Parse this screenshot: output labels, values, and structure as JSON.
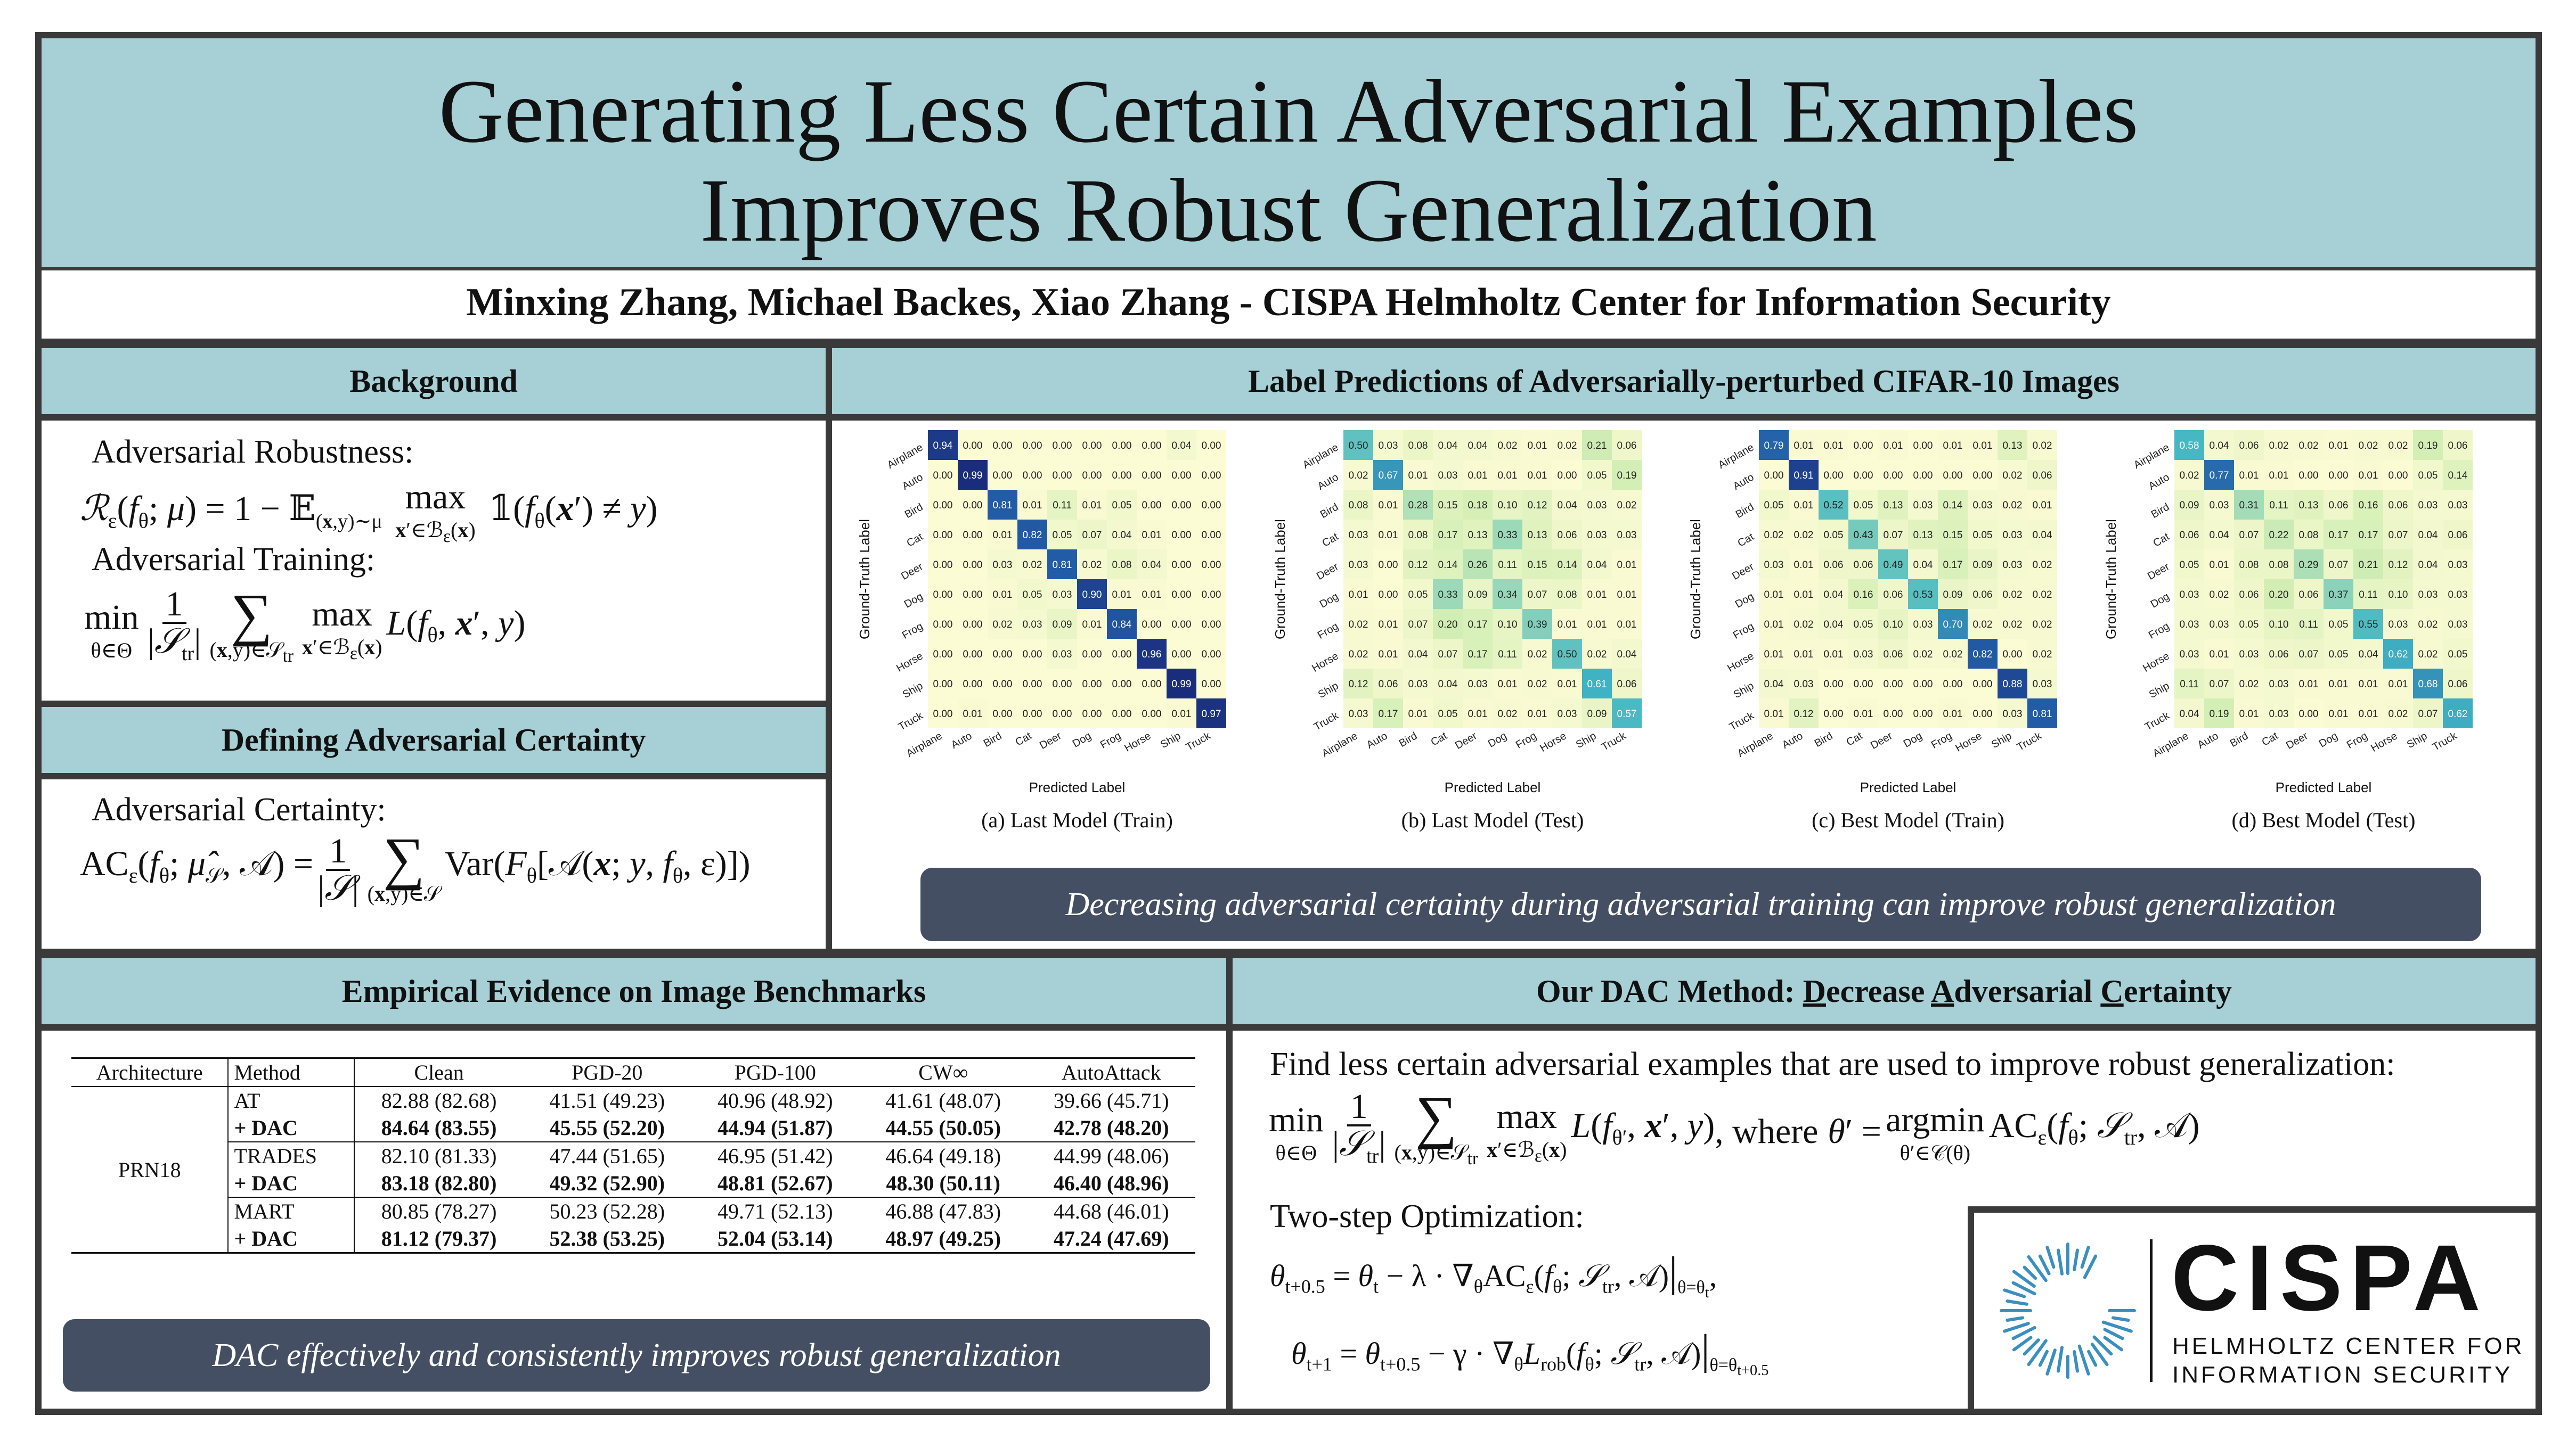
{
  "title": {
    "line1": "Generating Less Certain Adversarial Examples",
    "line2": "Improves Robust Generalization"
  },
  "authors": "Minxing Zhang, Michael Backes, Xiao Zhang -  CISPA Helmholtz Center for Information Security",
  "background": {
    "header": "Background",
    "robustness_label": "Adversarial Robustness:",
    "training_label": "Adversarial Training:"
  },
  "certainty": {
    "header": "Defining Adversarial Certainty",
    "label": "Adversarial Certainty:"
  },
  "label_pred": {
    "header": "Label Predictions of Adversarially-perturbed CIFAR-10 Images",
    "classes": [
      "Airplane",
      "Auto",
      "Bird",
      "Cat",
      "Deer",
      "Dog",
      "Frog",
      "Horse",
      "Ship",
      "Truck"
    ],
    "ylabel": "Ground-Truth Label",
    "xlabel": "Predicted Label",
    "panels": [
      {
        "caption": "(a)  Last Model (Train)",
        "matrix": [
          [
            0.94,
            0.0,
            0.0,
            0.0,
            0.0,
            0.0,
            0.0,
            0.0,
            0.04,
            0.0
          ],
          [
            0.0,
            0.99,
            0.0,
            0.0,
            0.0,
            0.0,
            0.0,
            0.0,
            0.0,
            0.0
          ],
          [
            0.0,
            0.0,
            0.81,
            0.01,
            0.11,
            0.01,
            0.05,
            0.0,
            0.0,
            0.0
          ],
          [
            0.0,
            0.0,
            0.01,
            0.82,
            0.05,
            0.07,
            0.04,
            0.01,
            0.0,
            0.0
          ],
          [
            0.0,
            0.0,
            0.03,
            0.02,
            0.81,
            0.02,
            0.08,
            0.04,
            0.0,
            0.0
          ],
          [
            0.0,
            0.0,
            0.01,
            0.05,
            0.03,
            0.9,
            0.01,
            0.01,
            0.0,
            0.0
          ],
          [
            0.0,
            0.0,
            0.02,
            0.03,
            0.09,
            0.01,
            0.84,
            0.0,
            0.0,
            0.0
          ],
          [
            0.0,
            0.0,
            0.0,
            0.0,
            0.03,
            0.0,
            0.0,
            0.96,
            0.0,
            0.0
          ],
          [
            0.0,
            0.0,
            0.0,
            0.0,
            0.0,
            0.0,
            0.0,
            0.0,
            0.99,
            0.0
          ],
          [
            0.0,
            0.01,
            0.0,
            0.0,
            0.0,
            0.0,
            0.0,
            0.0,
            0.01,
            0.97
          ]
        ]
      },
      {
        "caption": "(b)  Last Model (Test)",
        "matrix": [
          [
            0.5,
            0.03,
            0.08,
            0.04,
            0.04,
            0.02,
            0.01,
            0.02,
            0.21,
            0.06
          ],
          [
            0.02,
            0.67,
            0.01,
            0.03,
            0.01,
            0.01,
            0.01,
            0.0,
            0.05,
            0.19
          ],
          [
            0.08,
            0.01,
            0.28,
            0.15,
            0.18,
            0.1,
            0.12,
            0.04,
            0.03,
            0.02
          ],
          [
            0.03,
            0.01,
            0.08,
            0.17,
            0.13,
            0.33,
            0.13,
            0.06,
            0.03,
            0.03
          ],
          [
            0.03,
            0.0,
            0.12,
            0.14,
            0.26,
            0.11,
            0.15,
            0.14,
            0.04,
            0.01
          ],
          [
            0.01,
            0.0,
            0.05,
            0.33,
            0.09,
            0.34,
            0.07,
            0.08,
            0.01,
            0.01
          ],
          [
            0.02,
            0.01,
            0.07,
            0.2,
            0.17,
            0.1,
            0.39,
            0.01,
            0.01,
            0.01
          ],
          [
            0.02,
            0.01,
            0.04,
            0.07,
            0.17,
            0.11,
            0.02,
            0.5,
            0.02,
            0.04
          ],
          [
            0.12,
            0.06,
            0.03,
            0.04,
            0.03,
            0.01,
            0.02,
            0.01,
            0.61,
            0.06
          ],
          [
            0.03,
            0.17,
            0.01,
            0.05,
            0.01,
            0.02,
            0.01,
            0.03,
            0.09,
            0.57
          ]
        ]
      },
      {
        "caption": "(c)  Best Model (Train)",
        "matrix": [
          [
            0.79,
            0.01,
            0.01,
            0.0,
            0.01,
            0.0,
            0.01,
            0.01,
            0.13,
            0.02
          ],
          [
            0.0,
            0.91,
            0.0,
            0.0,
            0.0,
            0.0,
            0.0,
            0.0,
            0.02,
            0.06
          ],
          [
            0.05,
            0.01,
            0.52,
            0.05,
            0.13,
            0.03,
            0.14,
            0.03,
            0.02,
            0.01
          ],
          [
            0.02,
            0.02,
            0.05,
            0.43,
            0.07,
            0.13,
            0.15,
            0.05,
            0.03,
            0.04
          ],
          [
            0.03,
            0.01,
            0.06,
            0.06,
            0.49,
            0.04,
            0.17,
            0.09,
            0.03,
            0.02
          ],
          [
            0.01,
            0.01,
            0.04,
            0.16,
            0.06,
            0.53,
            0.09,
            0.06,
            0.02,
            0.02
          ],
          [
            0.01,
            0.02,
            0.04,
            0.05,
            0.1,
            0.03,
            0.7,
            0.02,
            0.02,
            0.02
          ],
          [
            0.01,
            0.01,
            0.01,
            0.03,
            0.06,
            0.02,
            0.02,
            0.82,
            0.0,
            0.02
          ],
          [
            0.04,
            0.03,
            0.0,
            0.0,
            0.0,
            0.0,
            0.0,
            0.0,
            0.88,
            0.03
          ],
          [
            0.01,
            0.12,
            0.0,
            0.01,
            0.0,
            0.0,
            0.01,
            0.0,
            0.03,
            0.81
          ]
        ]
      },
      {
        "caption": "(d)  Best Model (Test)",
        "matrix": [
          [
            0.58,
            0.04,
            0.06,
            0.02,
            0.02,
            0.01,
            0.02,
            0.02,
            0.19,
            0.06
          ],
          [
            0.02,
            0.77,
            0.01,
            0.01,
            0.0,
            0.0,
            0.01,
            0.0,
            0.05,
            0.14
          ],
          [
            0.09,
            0.03,
            0.31,
            0.11,
            0.13,
            0.06,
            0.16,
            0.06,
            0.03,
            0.03
          ],
          [
            0.06,
            0.04,
            0.07,
            0.22,
            0.08,
            0.17,
            0.17,
            0.07,
            0.04,
            0.06
          ],
          [
            0.05,
            0.01,
            0.08,
            0.08,
            0.29,
            0.07,
            0.21,
            0.12,
            0.04,
            0.03
          ],
          [
            0.03,
            0.02,
            0.06,
            0.2,
            0.06,
            0.37,
            0.11,
            0.1,
            0.03,
            0.03
          ],
          [
            0.03,
            0.03,
            0.05,
            0.1,
            0.11,
            0.05,
            0.55,
            0.03,
            0.02,
            0.03
          ],
          [
            0.03,
            0.01,
            0.03,
            0.06,
            0.07,
            0.05,
            0.04,
            0.62,
            0.02,
            0.05
          ],
          [
            0.11,
            0.07,
            0.02,
            0.03,
            0.01,
            0.01,
            0.01,
            0.01,
            0.68,
            0.06
          ],
          [
            0.04,
            0.19,
            0.01,
            0.03,
            0.0,
            0.01,
            0.01,
            0.02,
            0.07,
            0.62
          ]
        ]
      }
    ],
    "banner": "Decreasing adversarial certainty during adversarial training can improve robust generalization"
  },
  "empirical": {
    "header": "Empirical Evidence on Image Benchmarks",
    "columns": [
      "Architecture",
      "Method",
      "Clean",
      "PGD-20",
      "PGD-100",
      "CW∞",
      "AutoAttack"
    ],
    "architecture": "PRN18",
    "rows": [
      {
        "method": "AT",
        "bold": false,
        "values": [
          "82.88 (82.68)",
          "41.51 (49.23)",
          "40.96 (48.92)",
          "41.61 (48.07)",
          "39.66 (45.71)"
        ]
      },
      {
        "method": "+ DAC",
        "bold": true,
        "values": [
          "84.64 (83.55)",
          "45.55 (52.20)",
          "44.94 (51.87)",
          "44.55 (50.05)",
          "42.78 (48.20)"
        ]
      },
      {
        "method": "TRADES",
        "bold": false,
        "values": [
          "82.10 (81.33)",
          "47.44 (51.65)",
          "46.95 (51.42)",
          "46.64 (49.18)",
          "44.99 (48.06)"
        ]
      },
      {
        "method": "+ DAC",
        "bold": true,
        "values": [
          "83.18 (82.80)",
          "49.32 (52.90)",
          "48.81 (52.67)",
          "48.30 (50.11)",
          "46.40 (48.96)"
        ]
      },
      {
        "method": "MART",
        "bold": false,
        "values": [
          "80.85 (78.27)",
          "50.23 (52.28)",
          "49.71 (52.13)",
          "46.88 (47.83)",
          "44.68 (46.01)"
        ]
      },
      {
        "method": "+ DAC",
        "bold": true,
        "values": [
          "81.12 (79.37)",
          "52.38 (53.25)",
          "52.04 (53.14)",
          "48.97 (49.25)",
          "47.24 (47.69)"
        ]
      }
    ],
    "banner": "DAC effectively and consistently improves robust generalization"
  },
  "dac": {
    "header_prefix": "Our DAC Method: ",
    "header_d": "D",
    "header_ecrease": "ecrease ",
    "header_a": "A",
    "header_dversarial": "dversarial ",
    "header_c": "C",
    "header_ertainty": "ertainty",
    "intro": "Find less certain adversarial examples that are used to improve robust generalization:",
    "two_step": "Two-step Optimization:",
    "where": ", where"
  },
  "logo": {
    "name": "CISPA",
    "line1": "HELMHOLTZ CENTER FOR",
    "line2": "INFORMATION SECURITY"
  },
  "colors": {
    "header_bg": "#a6d0d6",
    "frame": "#3a3a3a",
    "banner_bg": "#454f63",
    "heat_low": "#fbfbd4",
    "heat_high": "#1a2a7a",
    "logo_blue": "#3a8fc0"
  }
}
